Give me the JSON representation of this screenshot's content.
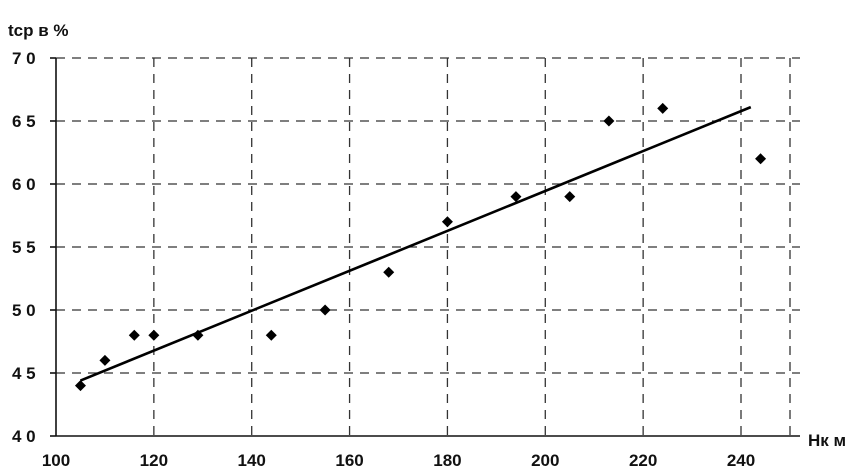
{
  "chart_data": {
    "type": "scatter",
    "title": "",
    "ylabel": "tcp в %",
    "xlabel": "Hк м",
    "xlim": [
      100,
      250
    ],
    "ylim": [
      40,
      70
    ],
    "xticks": [
      100,
      120,
      140,
      160,
      180,
      200,
      220,
      240
    ],
    "yticks": [
      40,
      45,
      50,
      55,
      60,
      65,
      70
    ],
    "ytick_labels": [
      "4 0",
      "4 5",
      "5 0",
      "5 5",
      "6 0",
      "6 5",
      "7 0"
    ],
    "grid": true,
    "series": [
      {
        "marker": "diamond",
        "points": [
          {
            "x": 105,
            "y": 44.0
          },
          {
            "x": 110,
            "y": 46.0
          },
          {
            "x": 116,
            "y": 48.0
          },
          {
            "x": 120,
            "y": 48.0
          },
          {
            "x": 129,
            "y": 48.0
          },
          {
            "x": 144,
            "y": 48.0
          },
          {
            "x": 155,
            "y": 50.0
          },
          {
            "x": 168,
            "y": 53.0
          },
          {
            "x": 180,
            "y": 57.0
          },
          {
            "x": 194,
            "y": 59.0
          },
          {
            "x": 205,
            "y": 59.0
          },
          {
            "x": 213,
            "y": 65.0
          },
          {
            "x": 224,
            "y": 66.0
          },
          {
            "x": 244,
            "y": 62.0
          }
        ]
      }
    ],
    "trendline": {
      "x": [
        105,
        242
      ],
      "y": [
        44.4,
        66.1
      ]
    }
  },
  "colors": {
    "ink": "#000000",
    "grid": "#333333",
    "background": "#ffffff"
  }
}
